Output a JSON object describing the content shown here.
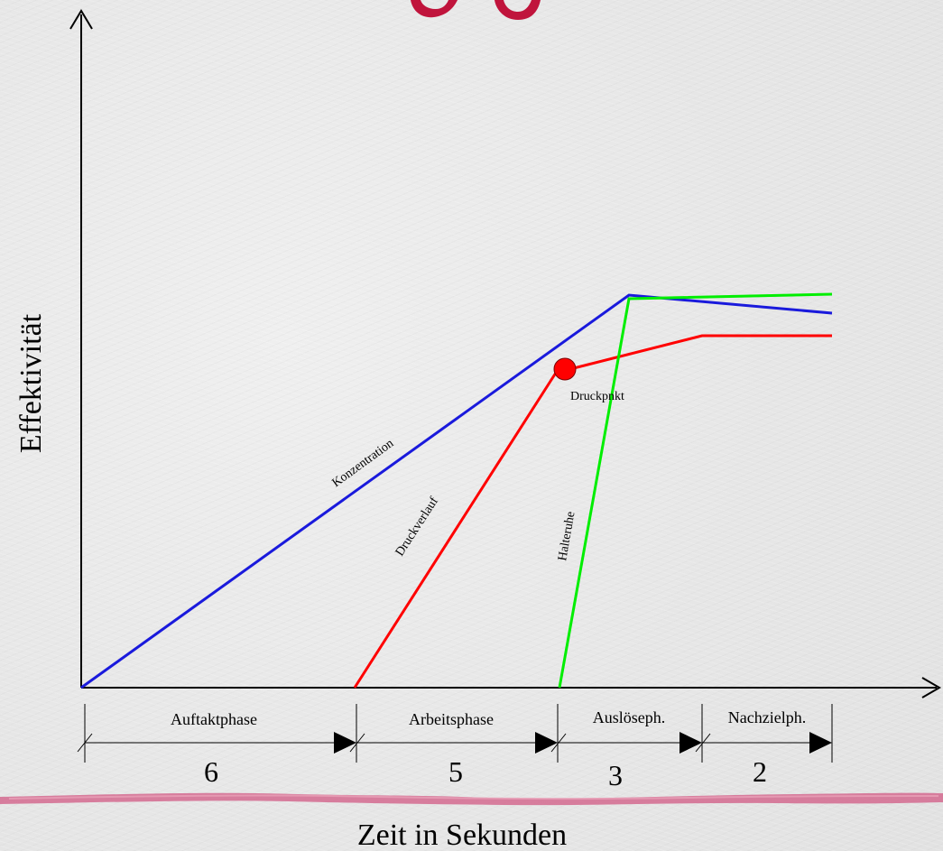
{
  "labels": {
    "y_axis": "Effektivität",
    "x_axis": "Zeit in Sekunden",
    "konzentration": "Konzentration",
    "druckverlauf": "Druckverlauf",
    "halteruhe": "Halteruhe",
    "druckpunkt": "Druckpnkt"
  },
  "phases": [
    {
      "name": "Auftaktphase",
      "seconds": "6"
    },
    {
      "name": "Arbeitsphase",
      "seconds": "5"
    },
    {
      "name": "Auslöseph.",
      "seconds": "3"
    },
    {
      "name": "Nachzielph.",
      "seconds": "2"
    }
  ],
  "colors": {
    "konzentration": "#1a1adc",
    "druckverlauf": "#ff0000",
    "halteruhe": "#00ee00",
    "point": "#ff0000",
    "axis": "#000000",
    "banner": "#d46a8f"
  }
}
